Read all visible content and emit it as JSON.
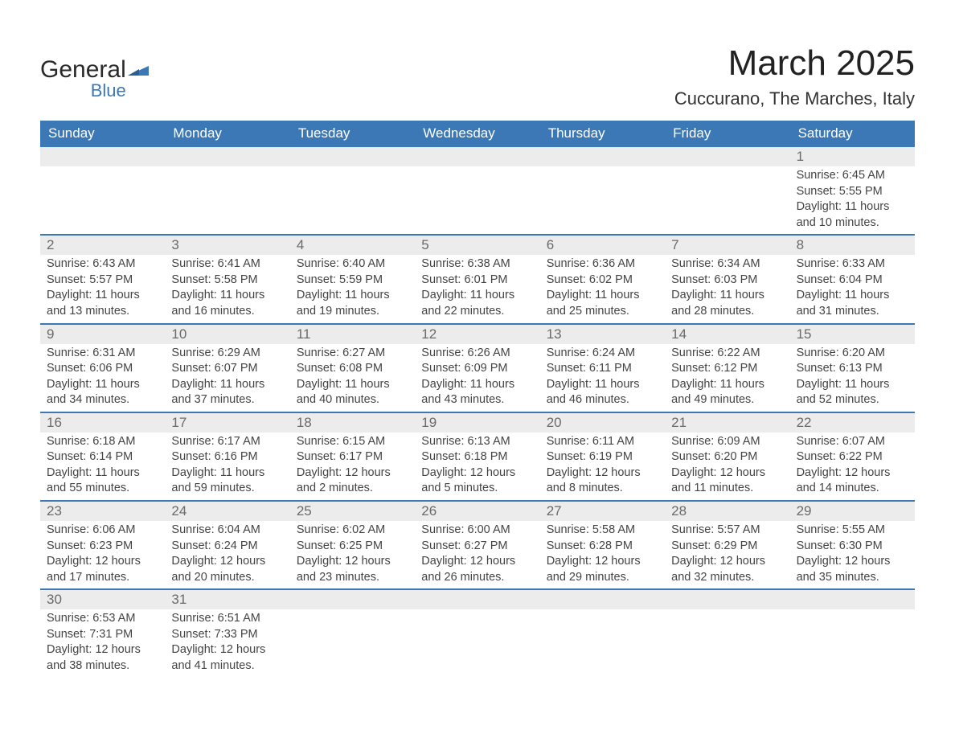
{
  "brand": {
    "name1": "General",
    "name2": "Blue"
  },
  "title": "March 2025",
  "location": "Cuccurano, The Marches, Italy",
  "colors": {
    "header_bg": "#3b78b5",
    "row_border": "#3b78b5",
    "daynum_bg": "#ececec",
    "text": "#444444",
    "daynum_text": "#6a6a6a",
    "title": "#222222",
    "white": "#ffffff"
  },
  "typography": {
    "title_fontsize": 44,
    "location_fontsize": 22,
    "weekday_fontsize": 17,
    "daynum_fontsize": 17,
    "body_fontsize": 14.5,
    "font_family": "Arial"
  },
  "weekdays": [
    "Sunday",
    "Monday",
    "Tuesday",
    "Wednesday",
    "Thursday",
    "Friday",
    "Saturday"
  ],
  "weeks": [
    [
      {
        "num": "",
        "sunrise": "",
        "sunset": "",
        "daylight1": "",
        "daylight2": ""
      },
      {
        "num": "",
        "sunrise": "",
        "sunset": "",
        "daylight1": "",
        "daylight2": ""
      },
      {
        "num": "",
        "sunrise": "",
        "sunset": "",
        "daylight1": "",
        "daylight2": ""
      },
      {
        "num": "",
        "sunrise": "",
        "sunset": "",
        "daylight1": "",
        "daylight2": ""
      },
      {
        "num": "",
        "sunrise": "",
        "sunset": "",
        "daylight1": "",
        "daylight2": ""
      },
      {
        "num": "",
        "sunrise": "",
        "sunset": "",
        "daylight1": "",
        "daylight2": ""
      },
      {
        "num": "1",
        "sunrise": "Sunrise: 6:45 AM",
        "sunset": "Sunset: 5:55 PM",
        "daylight1": "Daylight: 11 hours",
        "daylight2": "and 10 minutes."
      }
    ],
    [
      {
        "num": "2",
        "sunrise": "Sunrise: 6:43 AM",
        "sunset": "Sunset: 5:57 PM",
        "daylight1": "Daylight: 11 hours",
        "daylight2": "and 13 minutes."
      },
      {
        "num": "3",
        "sunrise": "Sunrise: 6:41 AM",
        "sunset": "Sunset: 5:58 PM",
        "daylight1": "Daylight: 11 hours",
        "daylight2": "and 16 minutes."
      },
      {
        "num": "4",
        "sunrise": "Sunrise: 6:40 AM",
        "sunset": "Sunset: 5:59 PM",
        "daylight1": "Daylight: 11 hours",
        "daylight2": "and 19 minutes."
      },
      {
        "num": "5",
        "sunrise": "Sunrise: 6:38 AM",
        "sunset": "Sunset: 6:01 PM",
        "daylight1": "Daylight: 11 hours",
        "daylight2": "and 22 minutes."
      },
      {
        "num": "6",
        "sunrise": "Sunrise: 6:36 AM",
        "sunset": "Sunset: 6:02 PM",
        "daylight1": "Daylight: 11 hours",
        "daylight2": "and 25 minutes."
      },
      {
        "num": "7",
        "sunrise": "Sunrise: 6:34 AM",
        "sunset": "Sunset: 6:03 PM",
        "daylight1": "Daylight: 11 hours",
        "daylight2": "and 28 minutes."
      },
      {
        "num": "8",
        "sunrise": "Sunrise: 6:33 AM",
        "sunset": "Sunset: 6:04 PM",
        "daylight1": "Daylight: 11 hours",
        "daylight2": "and 31 minutes."
      }
    ],
    [
      {
        "num": "9",
        "sunrise": "Sunrise: 6:31 AM",
        "sunset": "Sunset: 6:06 PM",
        "daylight1": "Daylight: 11 hours",
        "daylight2": "and 34 minutes."
      },
      {
        "num": "10",
        "sunrise": "Sunrise: 6:29 AM",
        "sunset": "Sunset: 6:07 PM",
        "daylight1": "Daylight: 11 hours",
        "daylight2": "and 37 minutes."
      },
      {
        "num": "11",
        "sunrise": "Sunrise: 6:27 AM",
        "sunset": "Sunset: 6:08 PM",
        "daylight1": "Daylight: 11 hours",
        "daylight2": "and 40 minutes."
      },
      {
        "num": "12",
        "sunrise": "Sunrise: 6:26 AM",
        "sunset": "Sunset: 6:09 PM",
        "daylight1": "Daylight: 11 hours",
        "daylight2": "and 43 minutes."
      },
      {
        "num": "13",
        "sunrise": "Sunrise: 6:24 AM",
        "sunset": "Sunset: 6:11 PM",
        "daylight1": "Daylight: 11 hours",
        "daylight2": "and 46 minutes."
      },
      {
        "num": "14",
        "sunrise": "Sunrise: 6:22 AM",
        "sunset": "Sunset: 6:12 PM",
        "daylight1": "Daylight: 11 hours",
        "daylight2": "and 49 minutes."
      },
      {
        "num": "15",
        "sunrise": "Sunrise: 6:20 AM",
        "sunset": "Sunset: 6:13 PM",
        "daylight1": "Daylight: 11 hours",
        "daylight2": "and 52 minutes."
      }
    ],
    [
      {
        "num": "16",
        "sunrise": "Sunrise: 6:18 AM",
        "sunset": "Sunset: 6:14 PM",
        "daylight1": "Daylight: 11 hours",
        "daylight2": "and 55 minutes."
      },
      {
        "num": "17",
        "sunrise": "Sunrise: 6:17 AM",
        "sunset": "Sunset: 6:16 PM",
        "daylight1": "Daylight: 11 hours",
        "daylight2": "and 59 minutes."
      },
      {
        "num": "18",
        "sunrise": "Sunrise: 6:15 AM",
        "sunset": "Sunset: 6:17 PM",
        "daylight1": "Daylight: 12 hours",
        "daylight2": "and 2 minutes."
      },
      {
        "num": "19",
        "sunrise": "Sunrise: 6:13 AM",
        "sunset": "Sunset: 6:18 PM",
        "daylight1": "Daylight: 12 hours",
        "daylight2": "and 5 minutes."
      },
      {
        "num": "20",
        "sunrise": "Sunrise: 6:11 AM",
        "sunset": "Sunset: 6:19 PM",
        "daylight1": "Daylight: 12 hours",
        "daylight2": "and 8 minutes."
      },
      {
        "num": "21",
        "sunrise": "Sunrise: 6:09 AM",
        "sunset": "Sunset: 6:20 PM",
        "daylight1": "Daylight: 12 hours",
        "daylight2": "and 11 minutes."
      },
      {
        "num": "22",
        "sunrise": "Sunrise: 6:07 AM",
        "sunset": "Sunset: 6:22 PM",
        "daylight1": "Daylight: 12 hours",
        "daylight2": "and 14 minutes."
      }
    ],
    [
      {
        "num": "23",
        "sunrise": "Sunrise: 6:06 AM",
        "sunset": "Sunset: 6:23 PM",
        "daylight1": "Daylight: 12 hours",
        "daylight2": "and 17 minutes."
      },
      {
        "num": "24",
        "sunrise": "Sunrise: 6:04 AM",
        "sunset": "Sunset: 6:24 PM",
        "daylight1": "Daylight: 12 hours",
        "daylight2": "and 20 minutes."
      },
      {
        "num": "25",
        "sunrise": "Sunrise: 6:02 AM",
        "sunset": "Sunset: 6:25 PM",
        "daylight1": "Daylight: 12 hours",
        "daylight2": "and 23 minutes."
      },
      {
        "num": "26",
        "sunrise": "Sunrise: 6:00 AM",
        "sunset": "Sunset: 6:27 PM",
        "daylight1": "Daylight: 12 hours",
        "daylight2": "and 26 minutes."
      },
      {
        "num": "27",
        "sunrise": "Sunrise: 5:58 AM",
        "sunset": "Sunset: 6:28 PM",
        "daylight1": "Daylight: 12 hours",
        "daylight2": "and 29 minutes."
      },
      {
        "num": "28",
        "sunrise": "Sunrise: 5:57 AM",
        "sunset": "Sunset: 6:29 PM",
        "daylight1": "Daylight: 12 hours",
        "daylight2": "and 32 minutes."
      },
      {
        "num": "29",
        "sunrise": "Sunrise: 5:55 AM",
        "sunset": "Sunset: 6:30 PM",
        "daylight1": "Daylight: 12 hours",
        "daylight2": "and 35 minutes."
      }
    ],
    [
      {
        "num": "30",
        "sunrise": "Sunrise: 6:53 AM",
        "sunset": "Sunset: 7:31 PM",
        "daylight1": "Daylight: 12 hours",
        "daylight2": "and 38 minutes."
      },
      {
        "num": "31",
        "sunrise": "Sunrise: 6:51 AM",
        "sunset": "Sunset: 7:33 PM",
        "daylight1": "Daylight: 12 hours",
        "daylight2": "and 41 minutes."
      },
      {
        "num": "",
        "sunrise": "",
        "sunset": "",
        "daylight1": "",
        "daylight2": ""
      },
      {
        "num": "",
        "sunrise": "",
        "sunset": "",
        "daylight1": "",
        "daylight2": ""
      },
      {
        "num": "",
        "sunrise": "",
        "sunset": "",
        "daylight1": "",
        "daylight2": ""
      },
      {
        "num": "",
        "sunrise": "",
        "sunset": "",
        "daylight1": "",
        "daylight2": ""
      },
      {
        "num": "",
        "sunrise": "",
        "sunset": "",
        "daylight1": "",
        "daylight2": ""
      }
    ]
  ]
}
